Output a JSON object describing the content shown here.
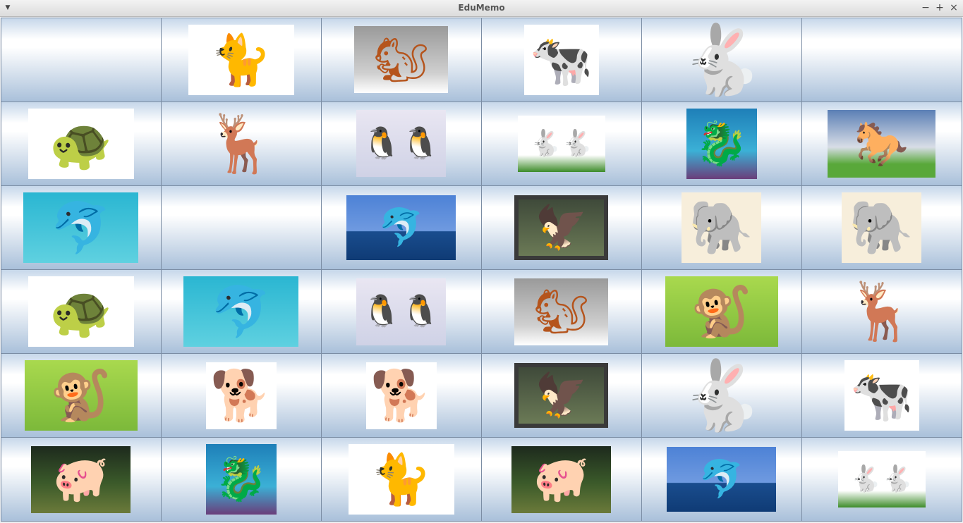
{
  "window": {
    "title": "EduMemo"
  },
  "board": {
    "rows": [
      [
        "empty",
        "cat",
        "squirrel",
        "cow",
        "rabbit-big",
        "empty"
      ],
      [
        "turtle",
        "deer",
        "penguins",
        "rabbits-grass",
        "seahorse",
        "horse"
      ],
      [
        "dolphin-smile",
        "empty",
        "dolphin-jump",
        "eagle",
        "elephant",
        "elephant"
      ],
      [
        "turtle",
        "dolphin-smile",
        "penguins",
        "squirrel",
        "monkey",
        "deer"
      ],
      [
        "monkey",
        "beagle",
        "beagle",
        "eagle",
        "rabbit-big",
        "cow"
      ],
      [
        "pig",
        "seahorse",
        "cat",
        "pig",
        "dolphin-jump",
        "rabbits-grass"
      ]
    ]
  }
}
